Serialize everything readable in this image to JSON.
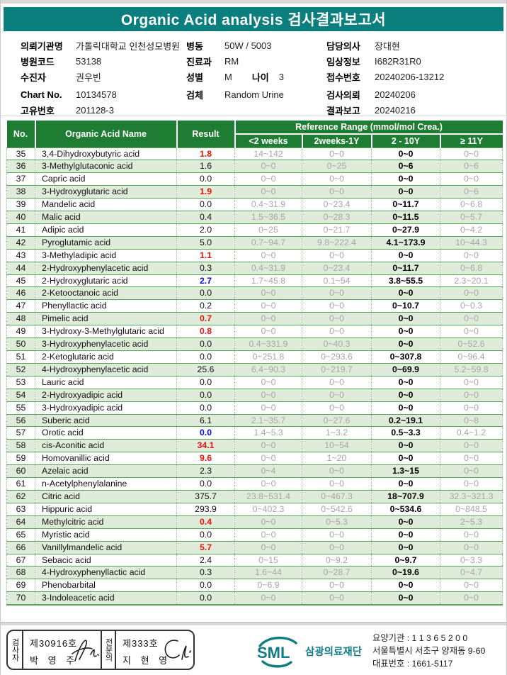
{
  "colors": {
    "accent-teal": "#0b7e7e",
    "table-header-green": "#1f7c33",
    "row-alt-green": "#dfecd9",
    "border-green": "#5ba460",
    "flag-red": "#e8130e",
    "flag-blue": "#0a0adf",
    "range-gray": "#a6a6a6",
    "logo-teal": "#107d85"
  },
  "title": "Organic Acid analysis 검사결과보고서",
  "patient_info": {
    "columns": [
      {
        "rows": [
          {
            "label": "의뢰기관명",
            "value": "가톨릭대학교 인천성모병원"
          },
          {
            "label": "병원코드",
            "value": "53138"
          },
          {
            "label": "수진자",
            "value": "권우빈"
          },
          {
            "label": "Chart No.",
            "value": "10134578",
            "gap": true
          },
          {
            "label": "고유번호",
            "value": "201128-3"
          }
        ]
      },
      {
        "rows": [
          {
            "label": "병동",
            "value": "50W / 5003"
          },
          {
            "label": "진료과",
            "value": "RM"
          },
          {
            "label": "성별",
            "value": "M",
            "label2": "나이",
            "value2": "3"
          },
          {
            "label": "검체",
            "value": "Random Urine",
            "gap": true
          }
        ]
      },
      {
        "rows": [
          {
            "label": "담당의사",
            "value": "장대현"
          },
          {
            "label": "임상정보",
            "value": "I682R31R0"
          },
          {
            "label": "접수번호",
            "value": "20240206-13212"
          },
          {
            "label": "검사의뢰",
            "value": "20240206",
            "gap": true
          },
          {
            "label": "결과보고",
            "value": "20240216"
          }
        ]
      }
    ]
  },
  "table": {
    "headers": {
      "no": "No.",
      "name": "Organic Acid Name",
      "result": "Result",
      "ref_group": "Reference Range (mmol/mol Crea.)",
      "ref_cols": [
        "<2 weeks",
        "2weeks-1Y",
        "2 - 10Y",
        "≥ 11Y"
      ]
    },
    "rows": [
      {
        "no": "35",
        "name": "3,4-Dihydroxybutyric acid",
        "result": "1.8",
        "flag": "high",
        "ranges": [
          "14~142",
          "0~0",
          "0~0",
          "0~0"
        ]
      },
      {
        "no": "36",
        "name": "3-Methylglutaconic acid",
        "result": "1.6",
        "flag": "normal",
        "ranges": [
          "0~0",
          "0~25",
          "0~6",
          "0~6"
        ]
      },
      {
        "no": "37",
        "name": "Capric acid",
        "result": "0.0",
        "flag": "normal",
        "ranges": [
          "0~0",
          "0~0",
          "0~0",
          "0~0"
        ]
      },
      {
        "no": "38",
        "name": "3-Hydroxyglutaric acid",
        "result": "1.9",
        "flag": "high",
        "ranges": [
          "0~0",
          "0~0",
          "0~0",
          "0~6"
        ]
      },
      {
        "no": "39",
        "name": "Mandelic acid",
        "result": "0.0",
        "flag": "normal",
        "ranges": [
          "0.4~31.9",
          "0~23.4",
          "0~11.7",
          "0~6.8"
        ]
      },
      {
        "no": "40",
        "name": "Malic acid",
        "result": "0.4",
        "flag": "normal",
        "ranges": [
          "1.5~36.5",
          "0~28.3",
          "0~11.5",
          "0~5.7"
        ]
      },
      {
        "no": "41",
        "name": "Adipic acid",
        "result": "2.0",
        "flag": "normal",
        "ranges": [
          "0~25",
          "0~21.7",
          "0~27.9",
          "0~4.2"
        ]
      },
      {
        "no": "42",
        "name": "Pyroglutamic acid",
        "result": "5.0",
        "flag": "normal",
        "ranges": [
          "0.7~94.7",
          "9.8~222.4",
          "4.1~173.9",
          "10~44.3"
        ]
      },
      {
        "no": "43",
        "name": "3-Methyladipic acid",
        "result": "1.1",
        "flag": "high",
        "ranges": [
          "0~0",
          "0~0",
          "0~0",
          "0~0"
        ]
      },
      {
        "no": "44",
        "name": "2-Hydroxyphenylacetic acid",
        "result": "0.3",
        "flag": "normal",
        "ranges": [
          "0.4~31.9",
          "0~23.4",
          "0~11.7",
          "0~6.8"
        ]
      },
      {
        "no": "45",
        "name": "2-Hydroxyglutaric acid",
        "result": "2.7",
        "flag": "low",
        "ranges": [
          "1.7~45.8",
          "0.1~54",
          "3.8~55.5",
          "2.3~20.1"
        ]
      },
      {
        "no": "46",
        "name": "2-Ketooctanoic acid",
        "result": "0.0",
        "flag": "normal",
        "ranges": [
          "0~0",
          "0~0",
          "0~0",
          "0~0"
        ]
      },
      {
        "no": "47",
        "name": "Phenyllactic acid",
        "result": "0.2",
        "flag": "normal",
        "ranges": [
          "0~0",
          "0~0",
          "0~10.7",
          "0~0.3"
        ]
      },
      {
        "no": "48",
        "name": "Pimelic acid",
        "result": "0.7",
        "flag": "high",
        "ranges": [
          "0~0",
          "0~0",
          "0~0",
          "0~0"
        ]
      },
      {
        "no": "49",
        "name": "3-Hydroxy-3-Methylglutaric acid",
        "result": "0.8",
        "flag": "high",
        "ranges": [
          "0~0",
          "0~0",
          "0~0",
          "0~0"
        ]
      },
      {
        "no": "50",
        "name": "3-Hydroxyphenylacetic acid",
        "result": "0.0",
        "flag": "normal",
        "ranges": [
          "0.4~331.9",
          "0~40.3",
          "0~0",
          "0~52.6"
        ]
      },
      {
        "no": "51",
        "name": "2-Ketoglutaric acid",
        "result": "0.0",
        "flag": "normal",
        "ranges": [
          "0~251.8",
          "0~293.6",
          "0~307.8",
          "0~96.4"
        ]
      },
      {
        "no": "52",
        "name": "4-Hydroxyphenylacetic acid",
        "result": "25.6",
        "flag": "normal",
        "ranges": [
          "6.4~90.3",
          "0~219.7",
          "0~69.9",
          "5.2~59.8"
        ]
      },
      {
        "no": "53",
        "name": "Lauric acid",
        "result": "0.0",
        "flag": "normal",
        "ranges": [
          "0~0",
          "0~0",
          "0~0",
          "0~0"
        ]
      },
      {
        "no": "54",
        "name": "2-Hydroxyadipic acid",
        "result": "0.0",
        "flag": "normal",
        "ranges": [
          "0~0",
          "0~0",
          "0~0",
          "0~0"
        ]
      },
      {
        "no": "55",
        "name": "3-Hydroxyadipic acid",
        "result": "0.0",
        "flag": "normal",
        "ranges": [
          "0~0",
          "0~0",
          "0~0",
          "0~0"
        ]
      },
      {
        "no": "56",
        "name": "Suberic acid",
        "result": "6.1",
        "flag": "normal",
        "ranges": [
          "2.1~35.7",
          "0~27.6",
          "0.2~19.1",
          "0~8"
        ]
      },
      {
        "no": "57",
        "name": "Orotic acid",
        "result": "0.0",
        "flag": "low",
        "ranges": [
          "1.4~5.3",
          "1~3.2",
          "0.5~3.3",
          "0.4~1.2"
        ]
      },
      {
        "no": "58",
        "name": "cis-Aconitic acid",
        "result": "34.1",
        "flag": "high",
        "ranges": [
          "0~0",
          "10~54",
          "0~0",
          "0~0"
        ]
      },
      {
        "no": "59",
        "name": "Homovanillic acid",
        "result": "9.6",
        "flag": "high",
        "ranges": [
          "0~0",
          "1~20",
          "0~0",
          "0~0"
        ]
      },
      {
        "no": "60",
        "name": "Azelaic acid",
        "result": "2.3",
        "flag": "normal",
        "ranges": [
          "0~4",
          "0~0",
          "1.3~15",
          "0~0"
        ]
      },
      {
        "no": "61",
        "name": "n-Acetylphenylalanine",
        "result": "0.0",
        "flag": "normal",
        "ranges": [
          "0~0",
          "0~0",
          "0~0",
          "0~0"
        ]
      },
      {
        "no": "62",
        "name": "Citric acid",
        "result": "375.7",
        "flag": "normal",
        "ranges": [
          "23.8~531.4",
          "0~467.3",
          "18~707.9",
          "32.3~321.3"
        ]
      },
      {
        "no": "63",
        "name": "Hippuric acid",
        "result": "293.9",
        "flag": "normal",
        "ranges": [
          "0~402.3",
          "0~542.6",
          "0~534.6",
          "0~848.5"
        ]
      },
      {
        "no": "64",
        "name": "Methylcitric acid",
        "result": "0.4",
        "flag": "high",
        "ranges": [
          "0~0",
          "0~5.3",
          "0~0",
          "2~5.3"
        ]
      },
      {
        "no": "65",
        "name": "Myristic acid",
        "result": "0.0",
        "flag": "normal",
        "ranges": [
          "0~0",
          "0~0",
          "0~0",
          "0~0"
        ]
      },
      {
        "no": "66",
        "name": "Vanillylmandelic acid",
        "result": "5.7",
        "flag": "high",
        "ranges": [
          "0~0",
          "0~0",
          "0~0",
          "0~0"
        ]
      },
      {
        "no": "67",
        "name": "Sebacic acid",
        "result": "2.4",
        "flag": "normal",
        "ranges": [
          "0~15",
          "0~9.2",
          "0~9.7",
          "0~3.3"
        ]
      },
      {
        "no": "68",
        "name": "4-Hydroxyphenyllactic acid",
        "result": "0.3",
        "flag": "normal",
        "ranges": [
          "1.6~44",
          "0~28.7",
          "0~19.6",
          "0~4.7"
        ]
      },
      {
        "no": "69",
        "name": "Phenobarbital",
        "result": "0.0",
        "flag": "normal",
        "ranges": [
          "0~6.9",
          "0~0",
          "0~0",
          "0~0"
        ]
      },
      {
        "no": "70",
        "name": "3-Indoleacetic acid",
        "result": "0.0",
        "flag": "normal",
        "ranges": [
          "0~0",
          "0~0",
          "0~0",
          "0~0"
        ]
      }
    ]
  },
  "footer": {
    "examiner": {
      "role": "검사자",
      "cert": "제30916호",
      "name": "박 영 주"
    },
    "specialist": {
      "role": "전문의",
      "cert": "제333호",
      "name": "지 현 영"
    },
    "org": {
      "logo": "SML",
      "name": "삼광의료재단"
    },
    "lines": [
      "요양기관 : 1 1 3 6 5 2 0 0",
      "서울특별시 서초구 양재동 9-60",
      "대표번호 : 1661-5117"
    ]
  }
}
